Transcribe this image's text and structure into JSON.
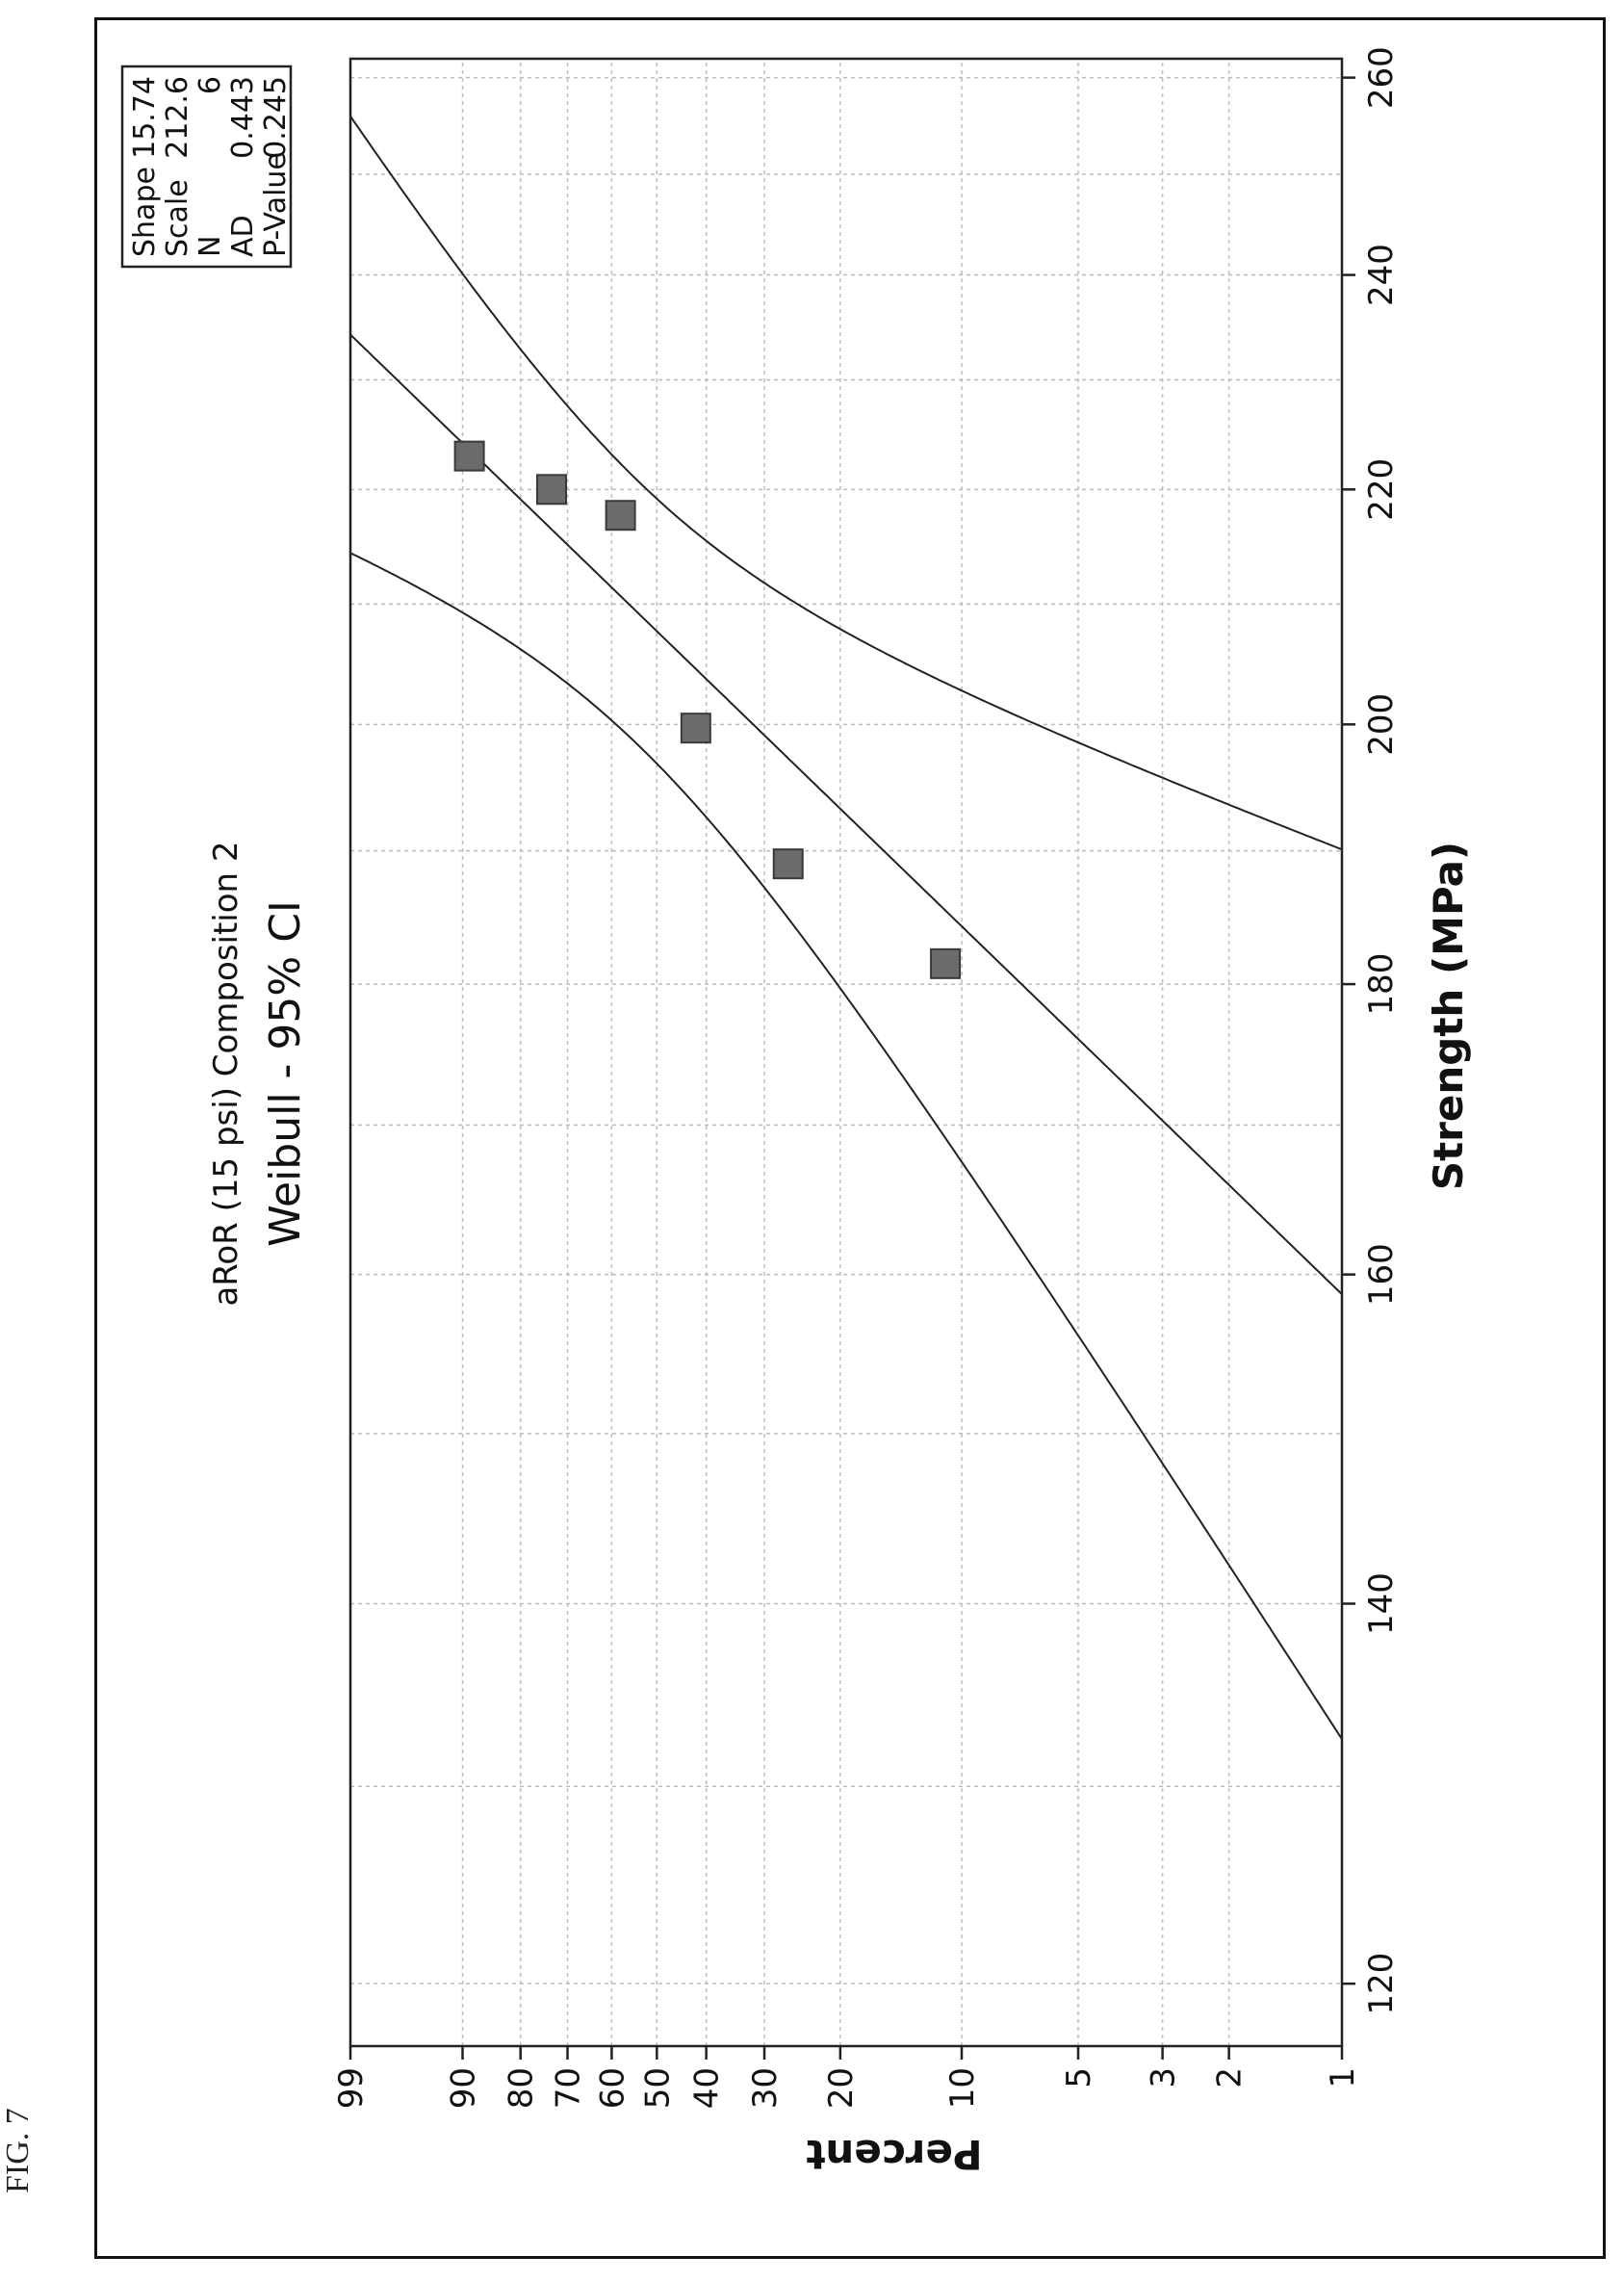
{
  "figure_label": "FIG. 7",
  "chart_data": {
    "type": "scatter",
    "title": "aRoR (15 psi) Composition 2",
    "subtitle": "Weibull - 95% CI",
    "xlabel": "Strength (MPa)",
    "ylabel": "Percent",
    "xlim": [
      117,
      262
    ],
    "ylim": [
      1,
      99
    ],
    "y_scale": "weibull-probability",
    "grid": true,
    "x_ticks": [
      120,
      140,
      160,
      180,
      200,
      220,
      240,
      260
    ],
    "x_minor_gridlines": [
      130,
      150,
      170,
      190,
      210,
      230,
      250
    ],
    "y_ticks": [
      1,
      2,
      3,
      5,
      10,
      20,
      30,
      40,
      50,
      60,
      70,
      80,
      90,
      99
    ],
    "points": [
      {
        "x": 181.5,
        "y": 11
      },
      {
        "x": 189.0,
        "y": 26.5
      },
      {
        "x": 199.7,
        "y": 42
      },
      {
        "x": 217.7,
        "y": 58
      },
      {
        "x": 220.0,
        "y": 73.5
      },
      {
        "x": 223.0,
        "y": 89
      }
    ],
    "fit": {
      "shape": 15.74,
      "scale": 212.6
    },
    "confidence_band": "95% CI",
    "stats_box": [
      {
        "label": "Shape",
        "value": "15.74"
      },
      {
        "label": "Scale",
        "value": "212.6"
      },
      {
        "label": "N",
        "value": "6"
      },
      {
        "label": "AD",
        "value": "0.443"
      },
      {
        "label": "P-Value",
        "value": "0.245"
      }
    ],
    "colors": {
      "marker": "#6b6b6b",
      "line": "#222222",
      "grid": "#bdbdbd"
    }
  }
}
